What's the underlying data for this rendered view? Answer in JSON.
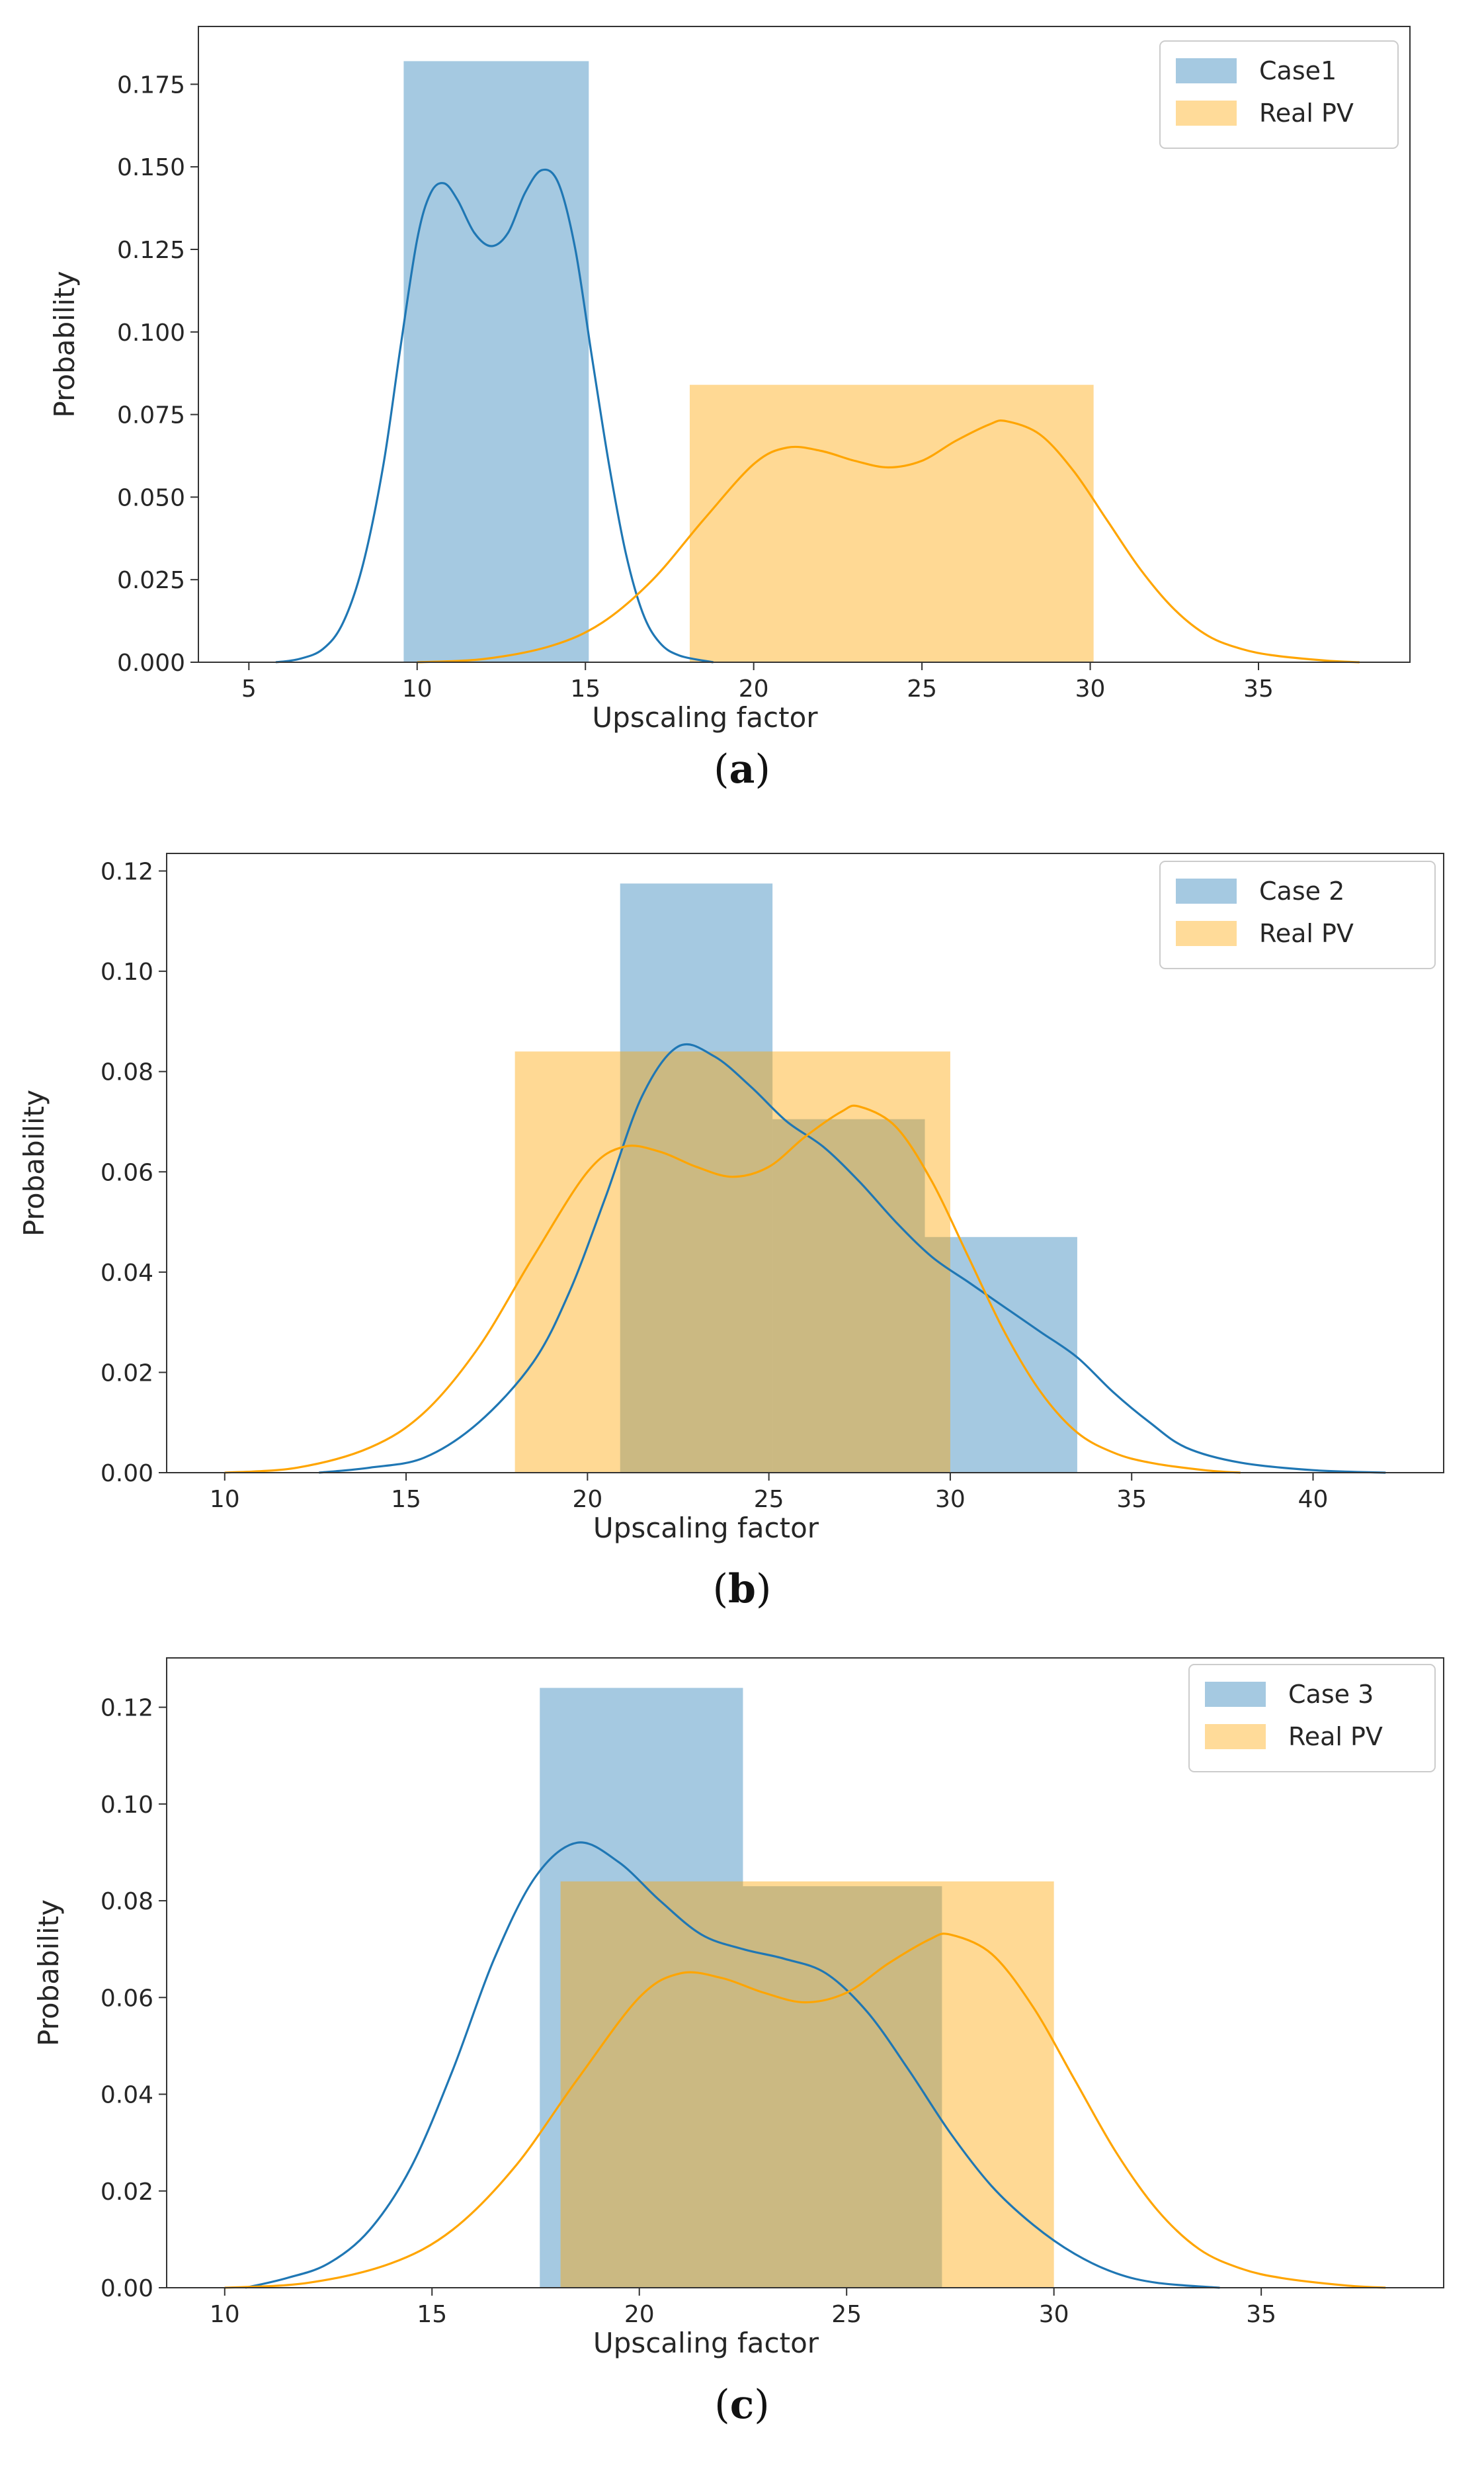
{
  "colors": {
    "blue": "#1f77b4",
    "orange": "#ffa500",
    "blue_fill": "#a6c8e2",
    "orange_fill": "#fdd994",
    "overlap_fill": "#c6ba88"
  },
  "chart_data": [
    {
      "type": "bar",
      "caption_letter": "a",
      "xlabel": "Upscaling factor",
      "ylabel": "Probability",
      "xlim": [
        3.5,
        39.5
      ],
      "ylim": [
        0,
        0.1925
      ],
      "xticks": [
        5,
        10,
        15,
        20,
        25,
        30,
        35
      ],
      "xtick_labels": [
        "5",
        "10",
        "15",
        "20",
        "25",
        "30",
        "35"
      ],
      "yticks": [
        0,
        0.025,
        0.05,
        0.075,
        0.1,
        0.125,
        0.15,
        0.175
      ],
      "ytick_labels": [
        "0.000",
        "0.025",
        "0.050",
        "0.075",
        "0.100",
        "0.125",
        "0.150",
        "0.175"
      ],
      "legend_position": "upper right",
      "series": [
        {
          "name": "Case1",
          "color_key": "blue",
          "bins": [
            {
              "x0": 9.6,
              "x1": 15.1,
              "height": 0.182
            }
          ],
          "kde": [
            [
              5.8,
              0
            ],
            [
              6.5,
              0.001
            ],
            [
              7.2,
              0.004
            ],
            [
              7.8,
              0.012
            ],
            [
              8.4,
              0.03
            ],
            [
              9.0,
              0.06
            ],
            [
              9.5,
              0.095
            ],
            [
              10.0,
              0.128
            ],
            [
              10.4,
              0.142
            ],
            [
              10.8,
              0.145
            ],
            [
              11.2,
              0.14
            ],
            [
              11.7,
              0.13
            ],
            [
              12.2,
              0.126
            ],
            [
              12.7,
              0.13
            ],
            [
              13.2,
              0.142
            ],
            [
              13.7,
              0.149
            ],
            [
              14.2,
              0.145
            ],
            [
              14.7,
              0.125
            ],
            [
              15.2,
              0.092
            ],
            [
              15.7,
              0.06
            ],
            [
              16.2,
              0.033
            ],
            [
              16.7,
              0.015
            ],
            [
              17.2,
              0.006
            ],
            [
              17.8,
              0.002
            ],
            [
              18.8,
              0
            ]
          ]
        },
        {
          "name": "Real PV",
          "color_key": "orange",
          "bins": [
            {
              "x0": 18.1,
              "x1": 30.1,
              "height": 0.084
            }
          ],
          "kde": [
            [
              10,
              0
            ],
            [
              12,
              0.001
            ],
            [
              14,
              0.005
            ],
            [
              15.5,
              0.012
            ],
            [
              17,
              0.025
            ],
            [
              18.5,
              0.043
            ],
            [
              20,
              0.06
            ],
            [
              21,
              0.065
            ],
            [
              22,
              0.064
            ],
            [
              23,
              0.061
            ],
            [
              24,
              0.059
            ],
            [
              25,
              0.061
            ],
            [
              26,
              0.067
            ],
            [
              27,
              0.072
            ],
            [
              27.5,
              0.073
            ],
            [
              28.5,
              0.069
            ],
            [
              29.5,
              0.058
            ],
            [
              30.5,
              0.043
            ],
            [
              31.5,
              0.028
            ],
            [
              32.5,
              0.016
            ],
            [
              33.5,
              0.008
            ],
            [
              34.5,
              0.004
            ],
            [
              35.5,
              0.002
            ],
            [
              37,
              0.0005
            ],
            [
              38,
              0
            ]
          ]
        }
      ]
    },
    {
      "type": "bar",
      "caption_letter": "b",
      "xlabel": "Upscaling factor",
      "ylabel": "Probability",
      "xlim": [
        8.4,
        43.6
      ],
      "ylim": [
        0,
        0.1235
      ],
      "xticks": [
        10,
        15,
        20,
        25,
        30,
        35,
        40
      ],
      "xtick_labels": [
        "10",
        "15",
        "20",
        "25",
        "30",
        "35",
        "40"
      ],
      "yticks": [
        0,
        0.02,
        0.04,
        0.06,
        0.08,
        0.1,
        0.12
      ],
      "ytick_labels": [
        "0.00",
        "0.02",
        "0.04",
        "0.06",
        "0.08",
        "0.10",
        "0.12"
      ],
      "legend_position": "upper right",
      "series": [
        {
          "name": "Case 2",
          "color_key": "blue",
          "bins": [
            {
              "x0": 20.9,
              "x1": 25.1,
              "height": 0.1175
            },
            {
              "x0": 25.1,
              "x1": 29.3,
              "height": 0.0705
            },
            {
              "x0": 29.3,
              "x1": 33.5,
              "height": 0.047
            }
          ],
          "kde": [
            [
              12.6,
              0
            ],
            [
              14,
              0.001
            ],
            [
              15.5,
              0.003
            ],
            [
              17,
              0.01
            ],
            [
              18.5,
              0.022
            ],
            [
              19.5,
              0.036
            ],
            [
              20.5,
              0.055
            ],
            [
              21.5,
              0.075
            ],
            [
              22.5,
              0.085
            ],
            [
              23.5,
              0.083
            ],
            [
              24.5,
              0.077
            ],
            [
              25.5,
              0.07
            ],
            [
              26.5,
              0.065
            ],
            [
              27.5,
              0.058
            ],
            [
              28.5,
              0.05
            ],
            [
              29.5,
              0.043
            ],
            [
              30.5,
              0.038
            ],
            [
              31.5,
              0.033
            ],
            [
              32.5,
              0.028
            ],
            [
              33.5,
              0.023
            ],
            [
              34.5,
              0.016
            ],
            [
              35.5,
              0.01
            ],
            [
              36.5,
              0.005
            ],
            [
              38,
              0.002
            ],
            [
              40,
              0.0005
            ],
            [
              42,
              0
            ]
          ]
        },
        {
          "name": "Real PV",
          "color_key": "orange",
          "bins": [
            {
              "x0": 18.0,
              "x1": 30.0,
              "height": 0.084
            }
          ],
          "kde": [
            [
              10,
              0
            ],
            [
              12,
              0.001
            ],
            [
              14,
              0.005
            ],
            [
              15.5,
              0.012
            ],
            [
              17,
              0.025
            ],
            [
              18.5,
              0.043
            ],
            [
              20,
              0.06
            ],
            [
              21,
              0.065
            ],
            [
              22,
              0.064
            ],
            [
              23,
              0.061
            ],
            [
              24,
              0.059
            ],
            [
              25,
              0.061
            ],
            [
              26,
              0.067
            ],
            [
              27,
              0.072
            ],
            [
              27.5,
              0.073
            ],
            [
              28.5,
              0.069
            ],
            [
              29.5,
              0.058
            ],
            [
              30.5,
              0.043
            ],
            [
              31.5,
              0.028
            ],
            [
              32.5,
              0.016
            ],
            [
              33.5,
              0.008
            ],
            [
              34.5,
              0.004
            ],
            [
              35.5,
              0.002
            ],
            [
              37,
              0.0005
            ],
            [
              38,
              0
            ]
          ]
        }
      ]
    },
    {
      "type": "bar",
      "caption_letter": "c",
      "xlabel": "Upscaling factor",
      "ylabel": "Probability",
      "xlim": [
        8.6,
        39.4
      ],
      "ylim": [
        0,
        0.1302
      ],
      "xticks": [
        10,
        15,
        20,
        25,
        30,
        35
      ],
      "xtick_labels": [
        "10",
        "15",
        "20",
        "25",
        "30",
        "35"
      ],
      "yticks": [
        0,
        0.02,
        0.04,
        0.06,
        0.08,
        0.1,
        0.12
      ],
      "ytick_labels": [
        "0.00",
        "0.02",
        "0.04",
        "0.06",
        "0.08",
        "0.10",
        "0.12"
      ],
      "legend_position": "upper right",
      "series": [
        {
          "name": "Case 3",
          "color_key": "blue",
          "bins": [
            {
              "x0": 17.6,
              "x1": 22.5,
              "height": 0.124
            },
            {
              "x0": 22.5,
              "x1": 27.3,
              "height": 0.083
            }
          ],
          "kde": [
            [
              10.5,
              0
            ],
            [
              11.5,
              0.002
            ],
            [
              12.5,
              0.005
            ],
            [
              13.5,
              0.012
            ],
            [
              14.5,
              0.025
            ],
            [
              15.5,
              0.045
            ],
            [
              16.5,
              0.068
            ],
            [
              17.5,
              0.085
            ],
            [
              18.5,
              0.092
            ],
            [
              19.5,
              0.088
            ],
            [
              20.5,
              0.08
            ],
            [
              21.5,
              0.073
            ],
            [
              22.5,
              0.07
            ],
            [
              23.5,
              0.068
            ],
            [
              24.5,
              0.065
            ],
            [
              25.5,
              0.057
            ],
            [
              26.5,
              0.045
            ],
            [
              27.5,
              0.032
            ],
            [
              28.5,
              0.021
            ],
            [
              29.5,
              0.013
            ],
            [
              30.5,
              0.007
            ],
            [
              31.5,
              0.003
            ],
            [
              32.5,
              0.001
            ],
            [
              34,
              0
            ]
          ]
        },
        {
          "name": "Real PV",
          "color_key": "orange",
          "bins": [
            {
              "x0": 18.1,
              "x1": 30.0,
              "height": 0.084
            }
          ],
          "kde": [
            [
              10,
              0
            ],
            [
              12,
              0.001
            ],
            [
              14,
              0.005
            ],
            [
              15.5,
              0.012
            ],
            [
              17,
              0.025
            ],
            [
              18.5,
              0.043
            ],
            [
              20,
              0.06
            ],
            [
              21,
              0.065
            ],
            [
              22,
              0.064
            ],
            [
              23,
              0.061
            ],
            [
              24,
              0.059
            ],
            [
              25,
              0.061
            ],
            [
              26,
              0.067
            ],
            [
              27,
              0.072
            ],
            [
              27.5,
              0.073
            ],
            [
              28.5,
              0.069
            ],
            [
              29.5,
              0.058
            ],
            [
              30.5,
              0.043
            ],
            [
              31.5,
              0.028
            ],
            [
              32.5,
              0.016
            ],
            [
              33.5,
              0.008
            ],
            [
              34.5,
              0.004
            ],
            [
              35.5,
              0.002
            ],
            [
              37,
              0.0005
            ],
            [
              38,
              0
            ]
          ]
        }
      ]
    }
  ]
}
